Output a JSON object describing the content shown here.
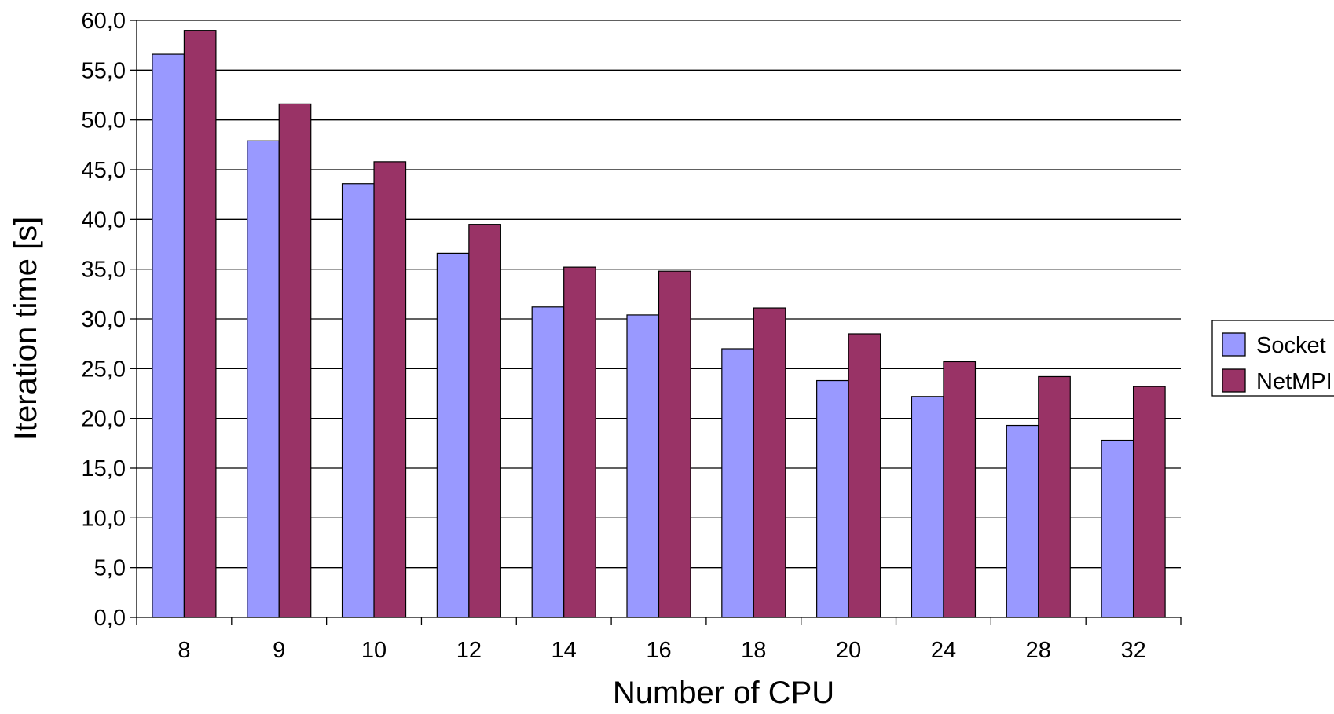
{
  "chart_data": {
    "type": "bar",
    "title": "",
    "xlabel": "Number of CPU",
    "ylabel": "Iteration time [s]",
    "categories": [
      "8",
      "9",
      "10",
      "12",
      "14",
      "16",
      "18",
      "20",
      "24",
      "28",
      "32"
    ],
    "series": [
      {
        "name": "Socket",
        "color": "#9999ff",
        "values": [
          56.6,
          47.9,
          43.6,
          36.6,
          31.2,
          30.4,
          27.0,
          23.8,
          22.2,
          19.3,
          17.8
        ]
      },
      {
        "name": "NetMPI",
        "color": "#993366",
        "values": [
          59.0,
          51.6,
          45.8,
          39.5,
          35.2,
          34.8,
          31.1,
          28.5,
          25.7,
          24.2,
          23.2
        ]
      }
    ],
    "ylim": [
      0,
      60
    ],
    "yticks": [
      "0,0",
      "5,0",
      "10,0",
      "15,0",
      "20,0",
      "25,0",
      "30,0",
      "35,0",
      "40,0",
      "45,0",
      "50,0",
      "55,0",
      "60,0"
    ],
    "grid": true,
    "legend_position": "right"
  }
}
